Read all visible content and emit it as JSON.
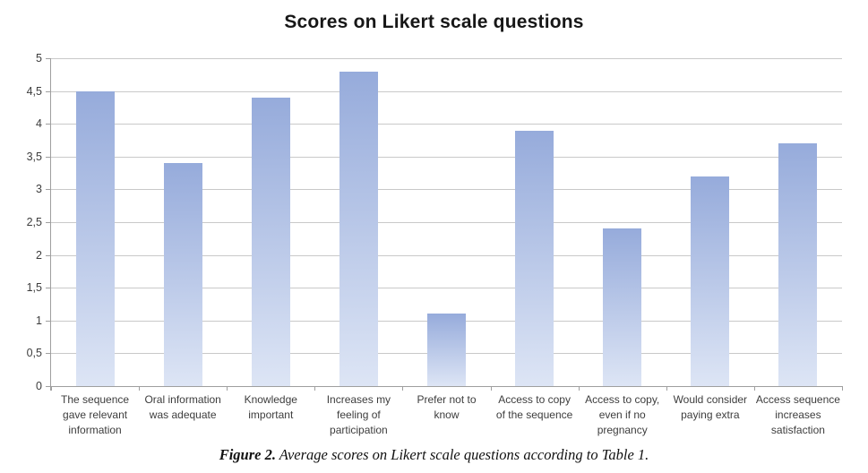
{
  "chart_data": {
    "type": "bar",
    "title": "Scores on Likert scale questions",
    "categories": [
      "The sequence\ngave relevant\ninformation",
      "Oral information\nwas adequate",
      "Knowledge\nimportant",
      "Increases my\nfeeling of\nparticipation",
      "Prefer not to\nknow",
      "Access to copy\nof the sequence",
      "Access to copy,\neven if no\npregnancy",
      "Would consider\npaying extra",
      "Access sequence\nincreases\nsatisfaction"
    ],
    "values": [
      4.5,
      3.4,
      4.4,
      4.8,
      1.1,
      3.9,
      2.4,
      3.2,
      3.7
    ],
    "xlabel": "",
    "ylabel": "",
    "ylim": [
      0,
      5
    ],
    "ytick_step": 0.5,
    "ytick_labels_top_to_bottom": [
      "5",
      "4,5",
      "4",
      "3,5",
      "3",
      "2,5",
      "2",
      "1,5",
      "1",
      "0,5",
      "0"
    ],
    "decimal_separator": ",",
    "grid": true,
    "legend": false,
    "colors": {
      "bar_gradient_top": "#96abdb",
      "bar_gradient_bottom": "#dde5f5",
      "gridline": "#c9c9c9",
      "axis": "#9f9f9f",
      "title_text": "#171717",
      "tick_text": "#3d3d3d"
    }
  },
  "caption": {
    "label": "Figure 2.",
    "text": " Average scores on Likert scale questions according to Table 1."
  }
}
